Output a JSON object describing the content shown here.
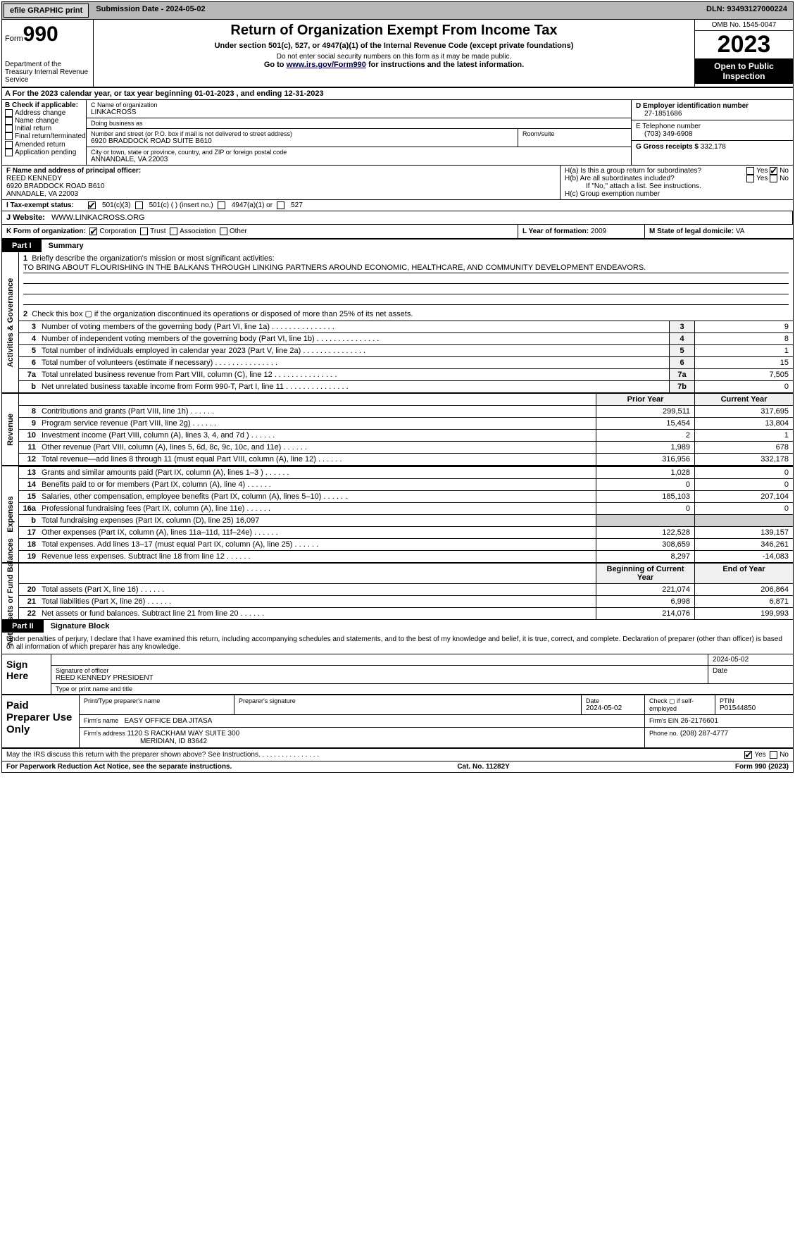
{
  "colors": {
    "bg_grey": "#b8b8b8",
    "btn_grey": "#d8d8d8",
    "box_grey": "#f0f0f0",
    "dark_grey": "#d0d0d0",
    "black": "#000000",
    "white": "#ffffff",
    "link": "#004488"
  },
  "fontsizes": {
    "base": 11,
    "small": 10,
    "title": 20,
    "form_num": 30,
    "year": 34,
    "sig_label": 14,
    "paid_label": 15
  },
  "topbar": {
    "efile": "efile GRAPHIC print",
    "submission_label": "Submission Date - 2024-05-02",
    "dln": "DLN: 93493127000224"
  },
  "header": {
    "form_prefix": "Form",
    "form_num": "990",
    "dept": "Department of the Treasury\nInternal Revenue Service",
    "title": "Return of Organization Exempt From Income Tax",
    "sub": "Under section 501(c), 527, or 4947(a)(1) of the Internal Revenue Code (except private foundations)",
    "note": "Do not enter social security numbers on this form as it may be made public.",
    "goto_prefix": "Go to ",
    "goto_link": "www.irs.gov/Form990",
    "goto_suffix": " for instructions and the latest information.",
    "omb": "OMB No. 1545-0047",
    "year": "2023",
    "open": "Open to Public Inspection"
  },
  "row_a": "A  For the 2023 calendar year, or tax year beginning 01-01-2023   , and ending 12-31-2023",
  "box_b": {
    "label": "B Check if applicable:",
    "items": [
      "Address change",
      "Name change",
      "Initial return",
      "Final return/terminated",
      "Amended return",
      "Application pending"
    ]
  },
  "box_c": {
    "name_label": "C Name of organization",
    "name": "LINKACROSS",
    "dba_label": "Doing business as",
    "dba": "",
    "street_label": "Number and street (or P.O. box if mail is not delivered to street address)",
    "room_label": "Room/suite",
    "street": "6920 BRADDOCK ROAD SUITE B610",
    "city_label": "City or town, state or province, country, and ZIP or foreign postal code",
    "city": "ANNANDALE, VA  22003"
  },
  "box_d": {
    "label": "D Employer identification number",
    "value": "27-1851686"
  },
  "box_e": {
    "label": "E Telephone number",
    "value": "(703) 349-6908"
  },
  "box_g": {
    "label": "G Gross receipts $ ",
    "value": "332,178"
  },
  "box_f": {
    "label": "F  Name and address of principal officer:",
    "name": "REED KENNEDY",
    "street": "6920 BRADDOCK ROAD B610",
    "city": "ANNADALE, VA  22003"
  },
  "box_h": {
    "a_label": "H(a)  Is this a group return for subordinates?",
    "a_yes": "Yes",
    "a_no": "No",
    "b_label": "H(b)  Are all subordinates included?",
    "b_yes": "Yes",
    "b_no": "No",
    "b_note": "If \"No,\" attach a list. See instructions.",
    "c_label": "H(c)  Group exemption number"
  },
  "row_i": {
    "label": "I   Tax-exempt status:",
    "opts": [
      "501(c)(3)",
      "501(c) (  ) (insert no.)",
      "4947(a)(1) or",
      "527"
    ]
  },
  "row_j": {
    "label": "J   Website:",
    "value": "WWW.LINKACROSS.ORG"
  },
  "row_k": {
    "label": "K Form of organization:",
    "opts": [
      "Corporation",
      "Trust",
      "Association",
      "Other"
    ]
  },
  "row_l": {
    "label": "L Year of formation: ",
    "value": "2009"
  },
  "row_m": {
    "label": "M State of legal domicile: ",
    "value": "VA"
  },
  "part1": {
    "num": "Part I",
    "title": "Summary"
  },
  "gov_label": "Activities & Governance",
  "rev_label": "Revenue",
  "exp_label": "Expenses",
  "nab_label": "Net Assets or Fund Balances",
  "line1": {
    "label": "Briefly describe the organization's mission or most significant activities:",
    "text": "TO BRING ABOUT FLOURISHING IN THE BALKANS THROUGH LINKING PARTNERS AROUND ECONOMIC, HEALTHCARE, AND COMMUNITY DEVELOPMENT ENDEAVORS."
  },
  "line2": "Check this box  ▢  if the organization discontinued its operations or disposed of more than 25% of its net assets.",
  "gov_rows": [
    {
      "n": "3",
      "desc": "Number of voting members of the governing body (Part VI, line 1a)",
      "box": "3",
      "val": "9"
    },
    {
      "n": "4",
      "desc": "Number of independent voting members of the governing body (Part VI, line 1b)",
      "box": "4",
      "val": "8"
    },
    {
      "n": "5",
      "desc": "Total number of individuals employed in calendar year 2023 (Part V, line 2a)",
      "box": "5",
      "val": "1"
    },
    {
      "n": "6",
      "desc": "Total number of volunteers (estimate if necessary)",
      "box": "6",
      "val": "15"
    },
    {
      "n": "7a",
      "desc": "Total unrelated business revenue from Part VIII, column (C), line 12",
      "box": "7a",
      "val": "7,505"
    },
    {
      "n": "b",
      "desc": "Net unrelated business taxable income from Form 990-T, Part I, line 11",
      "box": "7b",
      "val": "0"
    }
  ],
  "year_hdr": {
    "prior": "Prior Year",
    "current": "Current Year"
  },
  "rev_rows": [
    {
      "n": "8",
      "desc": "Contributions and grants (Part VIII, line 1h)",
      "py": "299,511",
      "cy": "317,695"
    },
    {
      "n": "9",
      "desc": "Program service revenue (Part VIII, line 2g)",
      "py": "15,454",
      "cy": "13,804"
    },
    {
      "n": "10",
      "desc": "Investment income (Part VIII, column (A), lines 3, 4, and 7d )",
      "py": "2",
      "cy": "1"
    },
    {
      "n": "11",
      "desc": "Other revenue (Part VIII, column (A), lines 5, 6d, 8c, 9c, 10c, and 11e)",
      "py": "1,989",
      "cy": "678"
    },
    {
      "n": "12",
      "desc": "Total revenue—add lines 8 through 11 (must equal Part VIII, column (A), line 12)",
      "py": "316,956",
      "cy": "332,178"
    }
  ],
  "exp_rows": [
    {
      "n": "13",
      "desc": "Grants and similar amounts paid (Part IX, column (A), lines 1–3 )",
      "py": "1,028",
      "cy": "0"
    },
    {
      "n": "14",
      "desc": "Benefits paid to or for members (Part IX, column (A), line 4)",
      "py": "0",
      "cy": "0"
    },
    {
      "n": "15",
      "desc": "Salaries, other compensation, employee benefits (Part IX, column (A), lines 5–10)",
      "py": "185,103",
      "cy": "207,104"
    },
    {
      "n": "16a",
      "desc": "Professional fundraising fees (Part IX, column (A), line 11e)",
      "py": "0",
      "cy": "0"
    },
    {
      "n": "b",
      "desc": "Total fundraising expenses (Part IX, column (D), line 25) 16,097",
      "py": "",
      "cy": "",
      "grey": true
    },
    {
      "n": "17",
      "desc": "Other expenses (Part IX, column (A), lines 11a–11d, 11f–24e)",
      "py": "122,528",
      "cy": "139,157"
    },
    {
      "n": "18",
      "desc": "Total expenses. Add lines 13–17 (must equal Part IX, column (A), line 25)",
      "py": "308,659",
      "cy": "346,261"
    },
    {
      "n": "19",
      "desc": "Revenue less expenses. Subtract line 18 from line 12",
      "py": "8,297",
      "cy": "-14,083"
    }
  ],
  "nab_hdr": {
    "prior": "Beginning of Current Year",
    "current": "End of Year"
  },
  "nab_rows": [
    {
      "n": "20",
      "desc": "Total assets (Part X, line 16)",
      "py": "221,074",
      "cy": "206,864"
    },
    {
      "n": "21",
      "desc": "Total liabilities (Part X, line 26)",
      "py": "6,998",
      "cy": "6,871"
    },
    {
      "n": "22",
      "desc": "Net assets or fund balances. Subtract line 21 from line 20",
      "py": "214,076",
      "cy": "199,993"
    }
  ],
  "part2": {
    "num": "Part II",
    "title": "Signature Block"
  },
  "sig_intro": "Under penalties of perjury, I declare that I have examined this return, including accompanying schedules and statements, and to the best of my knowledge and belief, it is true, correct, and complete. Declaration of preparer (other than officer) is based on all information of which preparer has any knowledge.",
  "sign": {
    "label": "Sign Here",
    "date": "2024-05-02",
    "sig_label": "Signature of officer",
    "date_label": "Date",
    "name": "REED KENNEDY PRESIDENT",
    "name_label": "Type or print name and title"
  },
  "paid": {
    "label": "Paid Preparer Use Only",
    "col1": "Print/Type preparer's name",
    "col2": "Preparer's signature",
    "col3_label": "Date",
    "col3": "2024-05-02",
    "col4_label": "Check ▢ if self-employed",
    "col5_label": "PTIN",
    "col5": "P01544850",
    "firm_name_label": "Firm's name",
    "firm_name": "EASY OFFICE DBA JITASA",
    "firm_ein_label": "Firm's EIN",
    "firm_ein": "26-2176601",
    "firm_addr_label": "Firm's address",
    "firm_addr1": "1120 S RACKHAM WAY SUITE 300",
    "firm_addr2": "MERIDIAN, ID  83642",
    "phone_label": "Phone no.",
    "phone": "(208) 287-4777"
  },
  "discuss": {
    "text": "May the IRS discuss this return with the preparer shown above? See Instructions.",
    "yes": "Yes",
    "no": "No"
  },
  "footer": {
    "left": "For Paperwork Reduction Act Notice, see the separate instructions.",
    "mid": "Cat. No. 11282Y",
    "right": "Form 990 (2023)"
  }
}
